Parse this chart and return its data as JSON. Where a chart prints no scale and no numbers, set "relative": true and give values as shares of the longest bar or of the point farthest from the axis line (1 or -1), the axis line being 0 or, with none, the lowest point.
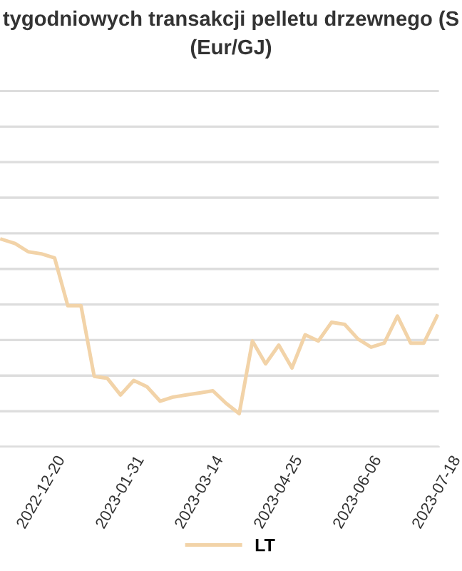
{
  "chart_data": {
    "type": "line",
    "title": "tygodniowych transakcji pelletu drzewnego (S",
    "subtitle": "(Eur/GJ)",
    "relative": true,
    "x": [
      "2022-11-29",
      "2022-12-06",
      "2022-12-13",
      "2022-12-20",
      "2022-12-27",
      "2023-01-03",
      "2023-01-10",
      "2023-01-17",
      "2023-01-24",
      "2023-01-31",
      "2023-02-07",
      "2023-02-14",
      "2023-02-21",
      "2023-02-28",
      "2023-03-07",
      "2023-03-14",
      "2023-03-21",
      "2023-03-28",
      "2023-04-04",
      "2023-04-11",
      "2023-04-18",
      "2023-04-25",
      "2023-05-02",
      "2023-05-09",
      "2023-05-16",
      "2023-05-23",
      "2023-05-30",
      "2023-06-06",
      "2023-06-13",
      "2023-06-20",
      "2023-06-27",
      "2023-07-04",
      "2023-07-11",
      "2023-07-18"
    ],
    "series": [
      {
        "name": "LT",
        "color": "#f2d3a8",
        "values": [
          1.0,
          0.98,
          0.94,
          0.93,
          0.91,
          0.68,
          0.68,
          0.34,
          0.33,
          0.25,
          0.32,
          0.29,
          0.22,
          0.24,
          0.25,
          0.26,
          0.27,
          0.21,
          0.16,
          0.51,
          0.4,
          0.49,
          0.38,
          0.54,
          0.51,
          0.6,
          0.59,
          0.52,
          0.48,
          0.5,
          0.63,
          0.5,
          0.5,
          0.63
        ]
      }
    ],
    "xlim": [
      "2022-11-28",
      "2023-07-19"
    ],
    "xticks": [
      "2022-12-20",
      "2023-01-31",
      "2023-03-14",
      "2023-04-25",
      "2023-06-06",
      "2023-07-18"
    ],
    "grid": "y",
    "legend": "bottom",
    "tick_labels": "x"
  }
}
